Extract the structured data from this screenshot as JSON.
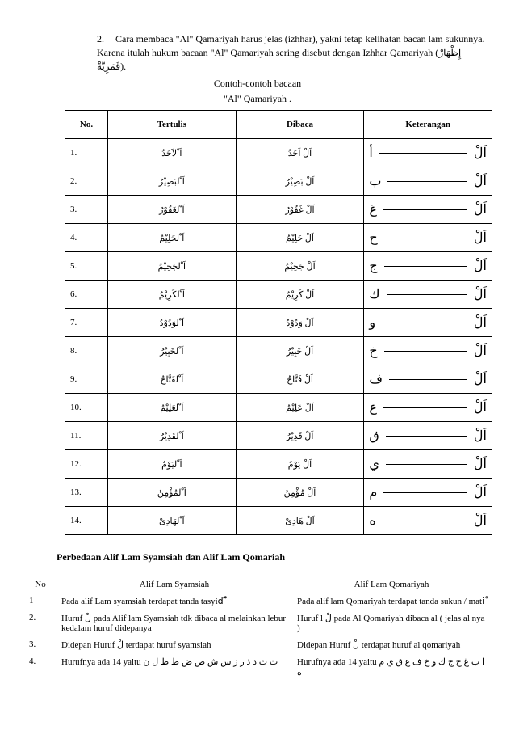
{
  "intro": {
    "num": "2.",
    "para": "Cara membaca \"Al\" Qamariyah harus jelas (izhhar), yakni tetap kelihatan bacan lam sukunnya. Karena itulah hukum bacaan \"Al\" Qamariyah sering disebut dengan Izhhar Qamariyah (إِظْهَارْ قَمَرِيَّةْ)."
  },
  "caption1": "Contoh-contoh bacaan",
  "caption2": "\"Al\" Qamariyah .",
  "table1": {
    "headers": {
      "no": "No.",
      "tertulis": "Tertulis",
      "dibaca": "Dibaca",
      "ket": "Keterangan"
    },
    "rows": [
      {
        "no": "1.",
        "tertulis": "اَ ْلاَحَدُ",
        "dibaca": "اَلْ اَحَدُ",
        "al": "اَلْ",
        "letter": "أ"
      },
      {
        "no": "2.",
        "tertulis": "اَ ْلبَصِيْرُ",
        "dibaca": "اَلْ بَصِيْرُ",
        "al": "اَلْ",
        "letter": "ب"
      },
      {
        "no": "3.",
        "tertulis": "اَ ْلغَفُوْرُ",
        "dibaca": "اَلْ غَفُوْرُ",
        "al": "اَلْ",
        "letter": "غ"
      },
      {
        "no": "4.",
        "tertulis": "اَ ْلحَلِيْمُ",
        "dibaca": "اَلْ حَلِيْمُ",
        "al": "اَلْ",
        "letter": "ح"
      },
      {
        "no": "5.",
        "tertulis": "اَ ْلجَحِيْمُ",
        "dibaca": "اَلْ جَحِيْمُ",
        "al": "اَلْ",
        "letter": "ج"
      },
      {
        "no": "6.",
        "tertulis": "اَ ْلكَرِيْمُ",
        "dibaca": "اَلْ كَرِيْمُ",
        "al": "اَلْ",
        "letter": "ك"
      },
      {
        "no": "7.",
        "tertulis": "اَ ْلوَدُوْدُ",
        "dibaca": "اَلْ وَدُوْدُ",
        "al": "اَلْ",
        "letter": "و"
      },
      {
        "no": "8.",
        "tertulis": "اَ ْلخَبِيْرُ",
        "dibaca": "اَلْ خَبِيْرُ",
        "al": "اَلْ",
        "letter": "خ"
      },
      {
        "no": "9.",
        "tertulis": "اَ ْلفَتَّاحُ",
        "dibaca": "اَلْ فَتَّاحُ",
        "al": "اَلْ",
        "letter": "ف"
      },
      {
        "no": "10.",
        "tertulis": "اَ ْلعَلِيْمُ",
        "dibaca": "اَلْ عَلِيْمُ",
        "al": "اَلْ",
        "letter": "ع"
      },
      {
        "no": "11.",
        "tertulis": "اَ ْلقَدِيْرُ",
        "dibaca": "اَلْ قَدِيْرُ",
        "al": "اَلْ",
        "letter": "ق"
      },
      {
        "no": "12.",
        "tertulis": "اَ ْليَوْمُ",
        "dibaca": "اَلْ يَوْمُ",
        "al": "اَلْ",
        "letter": "ي"
      },
      {
        "no": "13.",
        "tertulis": "اَ ْلمُؤْمِنُ",
        "dibaca": "اَلْ مُؤْمِنُ",
        "al": "اَلْ",
        "letter": "م"
      },
      {
        "no": "14.",
        "tertulis": "اَ ْلهَادِىْ",
        "dibaca": "اَلْ هَادِىْ",
        "al": "اَلْ",
        "letter": "ه"
      }
    ]
  },
  "section_h": "Perbedaan Alif Lam Syamsiah dan Alif Lam Qomariah",
  "table2": {
    "h_no": "No",
    "h_sy": "Alif Lam Syamsiah",
    "h_qo": "Alif Lam Qomariyah",
    "rows": [
      {
        "no": "1",
        "sy": "Pada alif Lam syamsiah terdapat tanda tasyidْ ّ",
        "qo": "Pada alif lam Qomariyah terdapat tanda sukun / matiْ"
      },
      {
        "no": "2.",
        "sy": "Huruf لْ pada Alif lam Syamsiah tdk dibaca al melainkan lebur kedalam huruf didepanya",
        "qo": "Huruf l لْ pada Al Qomariyah dibaca al  ( jelas al nya )"
      },
      {
        "no": "3.",
        "sy": "Didepan Huruf لْ terdapat huruf syamsiah",
        "qo": "Didepan Huruf لْ terdapat huruf al qomariyah"
      },
      {
        "no": "4.",
        "sy": "Hurufnya ada 14 yaitu ت ث د ذ ر ز س ش ص ض ط ظ ل ن",
        "qo": "Hurufnya ada 14 yaitu ا ب غ ح ج ك و خ ف ع ق ي م ه"
      }
    ]
  }
}
